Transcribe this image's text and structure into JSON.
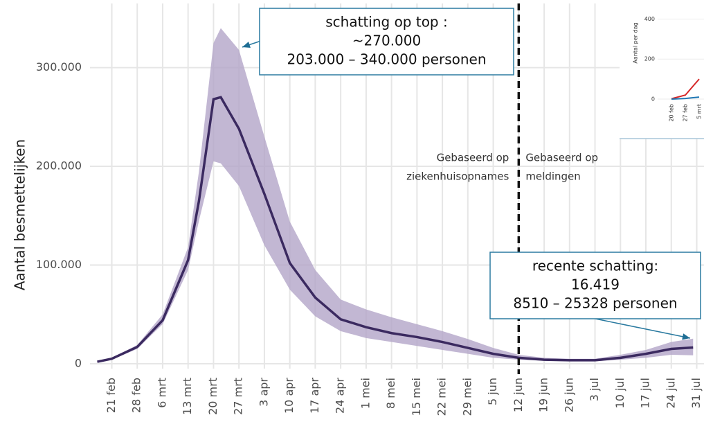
{
  "chart_data": [
    {
      "type": "band-line",
      "ylabel": "Aantal besmettelijken",
      "x": [
        -4,
        0,
        7,
        14,
        21,
        24,
        28,
        30,
        35,
        42,
        49,
        56,
        63,
        70,
        77,
        84,
        91,
        98,
        105,
        112,
        119,
        126,
        133,
        140,
        147,
        154,
        160
      ],
      "values": [
        2000,
        5000,
        17000,
        44000,
        105000,
        165000,
        268000,
        270000,
        238000,
        172000,
        102000,
        67000,
        45000,
        37000,
        31000,
        27000,
        22000,
        16000,
        10000,
        6000,
        4000,
        3500,
        3500,
        6000,
        10000,
        15000,
        16419
      ],
      "lower": [
        2000,
        4000,
        15000,
        40000,
        95000,
        145000,
        205000,
        203000,
        180000,
        120000,
        75000,
        48000,
        33000,
        26000,
        22000,
        18000,
        14000,
        10000,
        6000,
        4000,
        3000,
        2500,
        2500,
        4000,
        6000,
        9000,
        8510
      ],
      "upper": [
        2000,
        6000,
        19000,
        50000,
        118000,
        195000,
        325000,
        340000,
        318000,
        230000,
        144000,
        95000,
        65000,
        55000,
        47000,
        40000,
        33000,
        25000,
        16000,
        9000,
        6000,
        5000,
        5000,
        9000,
        14000,
        22000,
        25328
      ],
      "color": "#3b2a60",
      "band_color": "#b3a5c8",
      "xlim": [
        -6,
        163
      ],
      "ylim": [
        -5000,
        365000
      ],
      "xticks": [
        {
          "value": 0,
          "label": "21 feb"
        },
        {
          "value": 7,
          "label": "28 feb"
        },
        {
          "value": 14,
          "label": "6 mrt"
        },
        {
          "value": 21,
          "label": "13 mrt"
        },
        {
          "value": 28,
          "label": "20 mrt"
        },
        {
          "value": 35,
          "label": "27 mrt"
        },
        {
          "value": 42,
          "label": "3 apr"
        },
        {
          "value": 49,
          "label": "10 apr"
        },
        {
          "value": 56,
          "label": "17 apr"
        },
        {
          "value": 63,
          "label": "24 apr"
        },
        {
          "value": 70,
          "label": "1 mei"
        },
        {
          "value": 77,
          "label": "8 mei"
        },
        {
          "value": 84,
          "label": "15 mei"
        },
        {
          "value": 91,
          "label": "22 mei"
        },
        {
          "value": 98,
          "label": "29 mei"
        },
        {
          "value": 105,
          "label": "5 jun"
        },
        {
          "value": 112,
          "label": "12 jun"
        },
        {
          "value": 119,
          "label": "19 jun"
        },
        {
          "value": 126,
          "label": "26 jun"
        },
        {
          "value": 133,
          "label": "3 jul"
        },
        {
          "value": 140,
          "label": "10 jul"
        },
        {
          "value": 147,
          "label": "17 jul"
        },
        {
          "value": 154,
          "label": "24 jul"
        },
        {
          "value": 161,
          "label": "31 jul"
        }
      ],
      "yticks": [
        0,
        {
          "value": 100000,
          "label": "100.000"
        },
        {
          "value": 200000,
          "label": "200.000"
        },
        {
          "value": 300000,
          "label": "300.000"
        }
      ],
      "grid": true,
      "vline": 112,
      "vline_left_label": [
        "Gebaseerd op",
        "ziekenhuisopnames"
      ],
      "vline_right_label": [
        "Gebaseerd op",
        "meldingen"
      ],
      "annotations": [
        {
          "lines": [
            "schatting op top :",
            "~270.000",
            "203.000 – 340.000 personen"
          ]
        },
        {
          "lines": [
            "recente schatting:",
            "16.419",
            "8510 – 25328 personen"
          ]
        }
      ]
    },
    {
      "type": "line",
      "ylabel": "Aantal per dag",
      "categories": [
        "20 feb",
        "27 feb",
        "5 mrt"
      ],
      "series": [
        {
          "color": "#d62728",
          "values": [
            2,
            20,
            100
          ]
        },
        {
          "color": "#1f77b4",
          "values": [
            0,
            3,
            10
          ]
        }
      ],
      "ylim": [
        0,
        450
      ],
      "yticks": [
        0,
        200,
        400
      ]
    }
  ]
}
